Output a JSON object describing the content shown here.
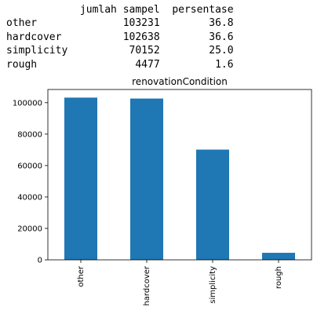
{
  "table": {
    "headers": [
      "",
      "jumlah sampel",
      "persentase"
    ],
    "rows": [
      {
        "label": "other",
        "count": "103231",
        "percent": "36.8"
      },
      {
        "label": "hardcover",
        "count": "102638",
        "percent": "36.6"
      },
      {
        "label": "simplicity",
        "count": "70152",
        "percent": "25.0"
      },
      {
        "label": "rough",
        "count": "4477",
        "percent": "1.6"
      }
    ]
  },
  "chart_data": {
    "type": "bar",
    "title": "renovationCondition",
    "categories": [
      "other",
      "hardcover",
      "simplicity",
      "rough"
    ],
    "values": [
      103231,
      102638,
      70152,
      4477
    ],
    "xlabel": "",
    "ylabel": "",
    "ylim": [
      0,
      108400
    ],
    "yticks": [
      0,
      20000,
      40000,
      60000,
      80000,
      100000
    ],
    "bar_color": "#1f77b4",
    "grid": false,
    "legend": false
  }
}
